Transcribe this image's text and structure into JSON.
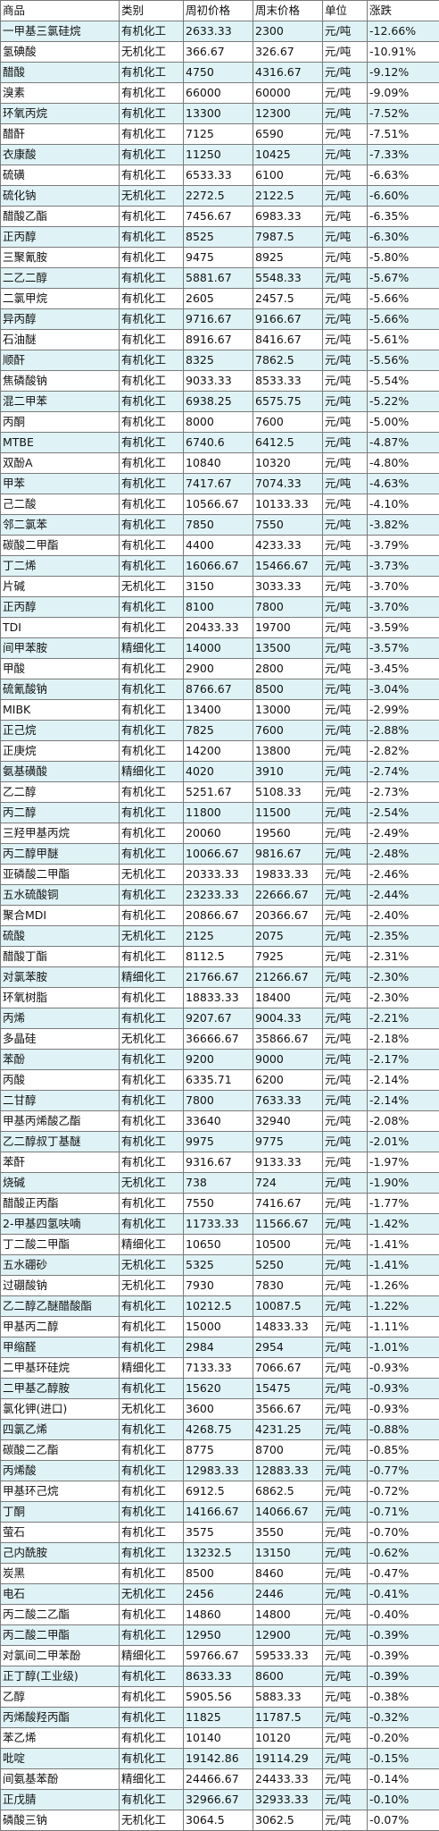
{
  "headers": [
    "商品",
    "类别",
    "周初价格",
    "周末价格",
    "单位",
    "涨跌"
  ],
  "colors": {
    "row_tint": "#dff3f6",
    "row_plain": "#ffffff",
    "grid_line": "#7a7a7a"
  },
  "rows": [
    [
      "一甲基三氯硅烷",
      "有机化工",
      "2633.33",
      "2300",
      "元/吨",
      "-12.66%"
    ],
    [
      "氢碘酸",
      "无机化工",
      "366.67",
      "326.67",
      "元/吨",
      "-10.91%"
    ],
    [
      "醋酸",
      "有机化工",
      "4750",
      "4316.67",
      "元/吨",
      "-9.12%"
    ],
    [
      "溴素",
      "有机化工",
      "66000",
      "60000",
      "元/吨",
      "-9.09%"
    ],
    [
      "环氧丙烷",
      "有机化工",
      "13300",
      "12300",
      "元/吨",
      "-7.52%"
    ],
    [
      "醋酐",
      "有机化工",
      "7125",
      "6590",
      "元/吨",
      "-7.51%"
    ],
    [
      "衣康酸",
      "有机化工",
      "11250",
      "10425",
      "元/吨",
      "-7.33%"
    ],
    [
      "硫磺",
      "有机化工",
      "6533.33",
      "6100",
      "元/吨",
      "-6.63%"
    ],
    [
      "硫化钠",
      "无机化工",
      "2272.5",
      "2122.5",
      "元/吨",
      "-6.60%"
    ],
    [
      "醋酸乙酯",
      "有机化工",
      "7456.67",
      "6983.33",
      "元/吨",
      "-6.35%"
    ],
    [
      "正丙醇",
      "有机化工",
      "8525",
      "7987.5",
      "元/吨",
      "-6.30%"
    ],
    [
      "三聚氰胺",
      "有机化工",
      "9475",
      "8925",
      "元/吨",
      "-5.80%"
    ],
    [
      "二乙二醇",
      "有机化工",
      "5881.67",
      "5548.33",
      "元/吨",
      "-5.67%"
    ],
    [
      "二氯甲烷",
      "有机化工",
      "2605",
      "2457.5",
      "元/吨",
      "-5.66%"
    ],
    [
      "异丙醇",
      "有机化工",
      "9716.67",
      "9166.67",
      "元/吨",
      "-5.66%"
    ],
    [
      "石油醚",
      "有机化工",
      "8916.67",
      "8416.67",
      "元/吨",
      "-5.61%"
    ],
    [
      "顺酐",
      "有机化工",
      "8325",
      "7862.5",
      "元/吨",
      "-5.56%"
    ],
    [
      "焦磷酸钠",
      "有机化工",
      "9033.33",
      "8533.33",
      "元/吨",
      "-5.54%"
    ],
    [
      "混二甲苯",
      "有机化工",
      "6938.25",
      "6575.75",
      "元/吨",
      "-5.22%"
    ],
    [
      "丙酮",
      "有机化工",
      "8000",
      "7600",
      "元/吨",
      "-5.00%"
    ],
    [
      "MTBE",
      "有机化工",
      "6740.6",
      "6412.5",
      "元/吨",
      "-4.87%"
    ],
    [
      "双酚A",
      "有机化工",
      "10840",
      "10320",
      "元/吨",
      "-4.80%"
    ],
    [
      "甲苯",
      "有机化工",
      "7417.67",
      "7074.33",
      "元/吨",
      "-4.63%"
    ],
    [
      "己二酸",
      "有机化工",
      "10566.67",
      "10133.33",
      "元/吨",
      "-4.10%"
    ],
    [
      "邻二氯苯",
      "有机化工",
      "7850",
      "7550",
      "元/吨",
      "-3.82%"
    ],
    [
      "碳酸二甲酯",
      "有机化工",
      "4400",
      "4233.33",
      "元/吨",
      "-3.79%"
    ],
    [
      "丁二烯",
      "有机化工",
      "16066.67",
      "15466.67",
      "元/吨",
      "-3.73%"
    ],
    [
      "片碱",
      "无机化工",
      "3150",
      "3033.33",
      "元/吨",
      "-3.70%"
    ],
    [
      "正丙醇",
      "有机化工",
      "8100",
      "7800",
      "元/吨",
      "-3.70%"
    ],
    [
      "TDI",
      "有机化工",
      "20433.33",
      "19700",
      "元/吨",
      "-3.59%"
    ],
    [
      "间甲苯胺",
      "精细化工",
      "14000",
      "13500",
      "元/吨",
      "-3.57%"
    ],
    [
      "甲酸",
      "有机化工",
      "2900",
      "2800",
      "元/吨",
      "-3.45%"
    ],
    [
      "硫氰酸钠",
      "有机化工",
      "8766.67",
      "8500",
      "元/吨",
      "-3.04%"
    ],
    [
      "MIBK",
      "有机化工",
      "13400",
      "13000",
      "元/吨",
      "-2.99%"
    ],
    [
      "正己烷",
      "有机化工",
      "7825",
      "7600",
      "元/吨",
      "-2.88%"
    ],
    [
      "正庚烷",
      "有机化工",
      "14200",
      "13800",
      "元/吨",
      "-2.82%"
    ],
    [
      "氨基磺酸",
      "精细化工",
      "4020",
      "3910",
      "元/吨",
      "-2.74%"
    ],
    [
      "乙二醇",
      "有机化工",
      "5251.67",
      "5108.33",
      "元/吨",
      "-2.73%"
    ],
    [
      "丙二醇",
      "有机化工",
      "11800",
      "11500",
      "元/吨",
      "-2.54%"
    ],
    [
      "三羟甲基丙烷",
      "有机化工",
      "20060",
      "19560",
      "元/吨",
      "-2.49%"
    ],
    [
      "丙二醇甲醚",
      "有机化工",
      "10066.67",
      "9816.67",
      "元/吨",
      "-2.48%"
    ],
    [
      "亚磷酸二甲酯",
      "无机化工",
      "20333.33",
      "19833.33",
      "元/吨",
      "-2.46%"
    ],
    [
      "五水硫酸铜",
      "有机化工",
      "23233.33",
      "22666.67",
      "元/吨",
      "-2.44%"
    ],
    [
      "聚合MDI",
      "有机化工",
      "20866.67",
      "20366.67",
      "元/吨",
      "-2.40%"
    ],
    [
      "硫酸",
      "无机化工",
      "2125",
      "2075",
      "元/吨",
      "-2.35%"
    ],
    [
      "醋酸丁酯",
      "有机化工",
      "8112.5",
      "7925",
      "元/吨",
      "-2.31%"
    ],
    [
      "对氯苯胺",
      "精细化工",
      "21766.67",
      "21266.67",
      "元/吨",
      "-2.30%"
    ],
    [
      "环氧树脂",
      "有机化工",
      "18833.33",
      "18400",
      "元/吨",
      "-2.30%"
    ],
    [
      "丙烯",
      "有机化工",
      "9207.67",
      "9004.33",
      "元/吨",
      "-2.21%"
    ],
    [
      "多晶硅",
      "无机化工",
      "36666.67",
      "35866.67",
      "元/吨",
      "-2.18%"
    ],
    [
      "苯酚",
      "有机化工",
      "9200",
      "9000",
      "元/吨",
      "-2.17%"
    ],
    [
      "丙酸",
      "有机化工",
      "6335.71",
      "6200",
      "元/吨",
      "-2.14%"
    ],
    [
      "二甘醇",
      "有机化工",
      "7800",
      "7633.33",
      "元/吨",
      "-2.14%"
    ],
    [
      "甲基丙烯酸乙酯",
      "有机化工",
      "33640",
      "32940",
      "元/吨",
      "-2.08%"
    ],
    [
      "乙二醇叔丁基醚",
      "有机化工",
      "9975",
      "9775",
      "元/吨",
      "-2.01%"
    ],
    [
      "苯酐",
      "有机化工",
      "9316.67",
      "9133.33",
      "元/吨",
      "-1.97%"
    ],
    [
      "烧碱",
      "无机化工",
      "738",
      "724",
      "元/吨",
      "-1.90%"
    ],
    [
      "醋酸正丙酯",
      "有机化工",
      "7550",
      "7416.67",
      "元/吨",
      "-1.77%"
    ],
    [
      "2-甲基四氢呋喃",
      "有机化工",
      "11733.33",
      "11566.67",
      "元/吨",
      "-1.42%"
    ],
    [
      "丁二酸二甲酯",
      "精细化工",
      "10650",
      "10500",
      "元/吨",
      "-1.41%"
    ],
    [
      "五水硼砂",
      "无机化工",
      "5325",
      "5250",
      "元/吨",
      "-1.41%"
    ],
    [
      "过硼酸钠",
      "无机化工",
      "7930",
      "7830",
      "元/吨",
      "-1.26%"
    ],
    [
      "乙二醇乙醚醋酸酯",
      "有机化工",
      "10212.5",
      "10087.5",
      "元/吨",
      "-1.22%"
    ],
    [
      "甲基丙二醇",
      "有机化工",
      "15000",
      "14833.33",
      "元/吨",
      "-1.11%"
    ],
    [
      "甲缩醛",
      "有机化工",
      "2984",
      "2954",
      "元/吨",
      "-1.01%"
    ],
    [
      "二甲基环硅烷",
      "精细化工",
      "7133.33",
      "7066.67",
      "元/吨",
      "-0.93%"
    ],
    [
      "二甲基乙醇胺",
      "有机化工",
      "15620",
      "15475",
      "元/吨",
      "-0.93%"
    ],
    [
      "氯化钾(进口)",
      "无机化工",
      "3600",
      "3566.67",
      "元/吨",
      "-0.93%"
    ],
    [
      "四氯乙烯",
      "有机化工",
      "4268.75",
      "4231.25",
      "元/吨",
      "-0.88%"
    ],
    [
      "碳酸二乙酯",
      "有机化工",
      "8775",
      "8700",
      "元/吨",
      "-0.85%"
    ],
    [
      "丙烯酸",
      "有机化工",
      "12983.33",
      "12883.33",
      "元/吨",
      "-0.77%"
    ],
    [
      "甲基环己烷",
      "有机化工",
      "6912.5",
      "6862.5",
      "元/吨",
      "-0.72%"
    ],
    [
      "丁酮",
      "有机化工",
      "14166.67",
      "14066.67",
      "元/吨",
      "-0.71%"
    ],
    [
      "萤石",
      "有机化工",
      "3575",
      "3550",
      "元/吨",
      "-0.70%"
    ],
    [
      "己内酰胺",
      "有机化工",
      "13232.5",
      "13150",
      "元/吨",
      "-0.62%"
    ],
    [
      "炭黑",
      "有机化工",
      "8500",
      "8460",
      "元/吨",
      "-0.47%"
    ],
    [
      "电石",
      "无机化工",
      "2456",
      "2446",
      "元/吨",
      "-0.41%"
    ],
    [
      "丙二酸二乙酯",
      "有机化工",
      "14860",
      "14800",
      "元/吨",
      "-0.40%"
    ],
    [
      "丙二酸二甲酯",
      "有机化工",
      "12950",
      "12900",
      "元/吨",
      "-0.39%"
    ],
    [
      "对氯间二甲苯酚",
      "精细化工",
      "59766.67",
      "59533.33",
      "元/吨",
      "-0.39%"
    ],
    [
      "正丁醇(工业级)",
      "有机化工",
      "8633.33",
      "8600",
      "元/吨",
      "-0.39%"
    ],
    [
      "乙醇",
      "有机化工",
      "5905.56",
      "5883.33",
      "元/吨",
      "-0.38%"
    ],
    [
      "丙烯酸羟丙酯",
      "有机化工",
      "11825",
      "11787.5",
      "元/吨",
      "-0.32%"
    ],
    [
      "苯乙烯",
      "有机化工",
      "10140",
      "10120",
      "元/吨",
      "-0.20%"
    ],
    [
      "吡啶",
      "有机化工",
      "19142.86",
      "19114.29",
      "元/吨",
      "-0.15%"
    ],
    [
      "间氨基苯酚",
      "精细化工",
      "24466.67",
      "24433.33",
      "元/吨",
      "-0.14%"
    ],
    [
      "正戊腈",
      "有机化工",
      "32966.67",
      "32933.33",
      "元/吨",
      "-0.10%"
    ],
    [
      "磷酸三钠",
      "无机化工",
      "3064.5",
      "3062.5",
      "元/吨",
      "-0.07%"
    ]
  ]
}
